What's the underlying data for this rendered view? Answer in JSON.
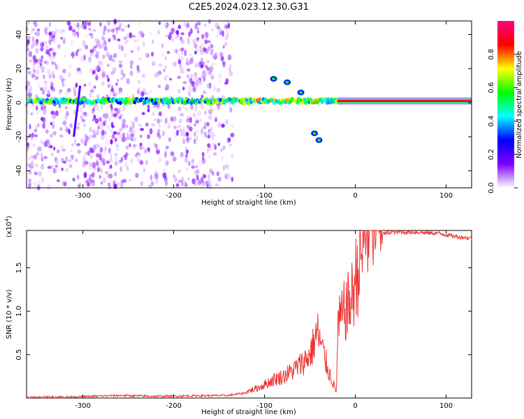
{
  "title": "C2E5.2024.023.12.30.G31",
  "chart_data": [
    {
      "type": "heatmap",
      "xlabel": "Height of straight line (km)",
      "ylabel": "Frequency (Hz)",
      "xlim": [
        -362,
        128
      ],
      "ylim": [
        -50,
        48
      ],
      "xticks": [
        "-300",
        "-200",
        "-100",
        "0",
        "100"
      ],
      "xtick_values": [
        -300,
        -200,
        -100,
        0,
        100
      ],
      "yticks": [
        "-40",
        "-20",
        "0",
        "20",
        "40"
      ],
      "ytick_values": [
        -40,
        -20,
        0,
        20,
        40
      ],
      "colorbar": {
        "label": "Normalized spectral amplitude",
        "range": [
          0,
          1
        ],
        "ticks": [
          "0.0",
          "0.2",
          "0.4",
          "0.6",
          "0.8"
        ],
        "tick_values": [
          0,
          0.2,
          0.4,
          0.6,
          0.8
        ],
        "colormap": [
          "#ffffff",
          "#7f00ff",
          "#0000ff",
          "#00ffff",
          "#00ff00",
          "#ffff00",
          "#ff0000",
          "#ff0080"
        ]
      },
      "features": [
        {
          "name": "carrier",
          "x_from": -362,
          "x_to": 128,
          "frequency": 1
        },
        {
          "name": "noise region",
          "x_from": -362,
          "x_to": -135
        },
        {
          "name": "diagonal trace",
          "from": [
            -310,
            -20
          ],
          "to": [
            -303,
            10
          ]
        },
        {
          "name": "split traces",
          "points": [
            [
              -90,
              14
            ],
            [
              -75,
              12
            ],
            [
              -60,
              6
            ],
            [
              -45,
              -18
            ],
            [
              -40,
              -22
            ]
          ]
        }
      ]
    },
    {
      "type": "line",
      "xlabel": "Height of straight line (km)",
      "ylabel": "SNR (10 * v/v)",
      "multiplier": "(x10",
      "multiplier_exp": "4",
      "multiplier_close": ")",
      "xlim": [
        -362,
        128
      ],
      "ylim": [
        0,
        19300
      ],
      "xticks": [
        "-300",
        "-200",
        "-100",
        "0",
        "100"
      ],
      "xtick_values": [
        -300,
        -200,
        -100,
        0,
        100
      ],
      "yticks": [
        "0.5",
        "1.0",
        "1.5"
      ],
      "ytick_values": [
        5000,
        10000,
        15000
      ],
      "color": "#ee3333",
      "series": [
        {
          "x": [
            -362,
            -330,
            -300,
            -260,
            -220,
            -180,
            -140,
            -120,
            -110,
            -100,
            -90,
            -80,
            -70,
            -60,
            -50,
            -45,
            -42,
            -38,
            -34,
            -30,
            -25,
            -21,
            -19,
            -15,
            -10,
            -5,
            0,
            5,
            10,
            15,
            20,
            25,
            30,
            35,
            40,
            50,
            60,
            70,
            80,
            90,
            100,
            110,
            120,
            128
          ],
          "y": [
            100,
            120,
            160,
            300,
            200,
            260,
            300,
            600,
            900,
            1300,
            1800,
            2100,
            2600,
            3300,
            4200,
            5500,
            6500,
            5200,
            4000,
            2800,
            1600,
            500,
            7000,
            7800,
            8800,
            9300,
            11500,
            13500,
            15500,
            17200,
            18100,
            18500,
            18900,
            19000,
            19100,
            19100,
            19100,
            19100,
            19000,
            19000,
            18800,
            18600,
            18500,
            18400
          ]
        }
      ]
    }
  ]
}
